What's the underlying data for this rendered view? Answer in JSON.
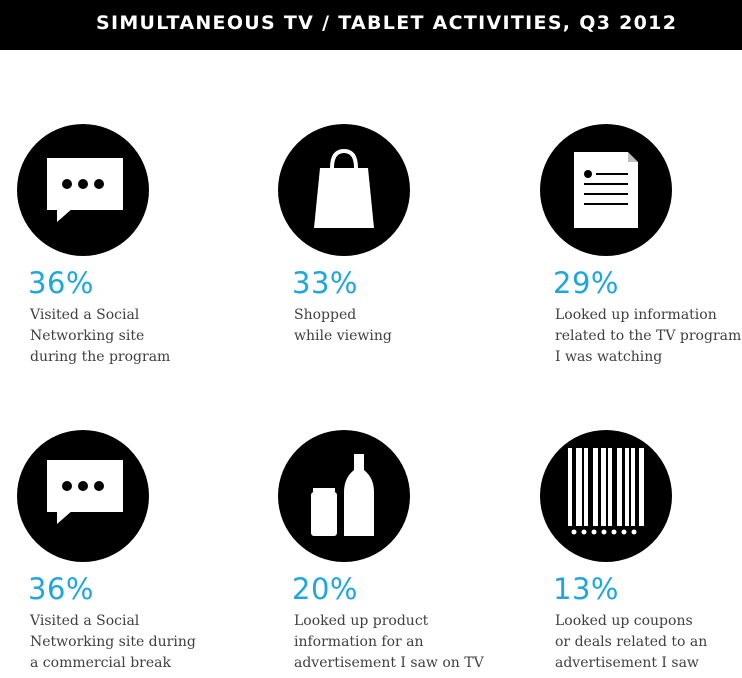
{
  "title": "SIMULTANEOUS TV / TABLET ACTIVITIES, Q3 2012",
  "chart_data": {
    "type": "table",
    "title": "SIMULTANEOUS TV / TABLET ACTIVITIES, Q3 2012",
    "unit": "%",
    "items": [
      {
        "icon": "speech-bubble-icon",
        "value": 36,
        "label": "36%",
        "description": "Visited a Social\nNetworking site\nduring the program"
      },
      {
        "icon": "shopping-bag-icon",
        "value": 33,
        "label": "33%",
        "description": "Shopped\nwhile viewing"
      },
      {
        "icon": "document-icon",
        "value": 29,
        "label": "29%",
        "description": "Looked up information\nrelated to the TV program\nI was watching"
      },
      {
        "icon": "speech-bubble-icon",
        "value": 36,
        "label": "36%",
        "description": "Visited a Social\nNetworking site during\na commercial break"
      },
      {
        "icon": "can-and-bottle-icon",
        "value": 20,
        "label": "20%",
        "description": "Looked up product\ninformation for an\nadvertisement I saw on TV"
      },
      {
        "icon": "barcode-icon",
        "value": 13,
        "label": "13%",
        "description": "Looked up coupons\nor deals related to an\nadvertisement I saw"
      }
    ]
  },
  "colors": {
    "accent": "#1ea7df",
    "text": "#3f3f3f",
    "icon_bg": "#000000"
  }
}
